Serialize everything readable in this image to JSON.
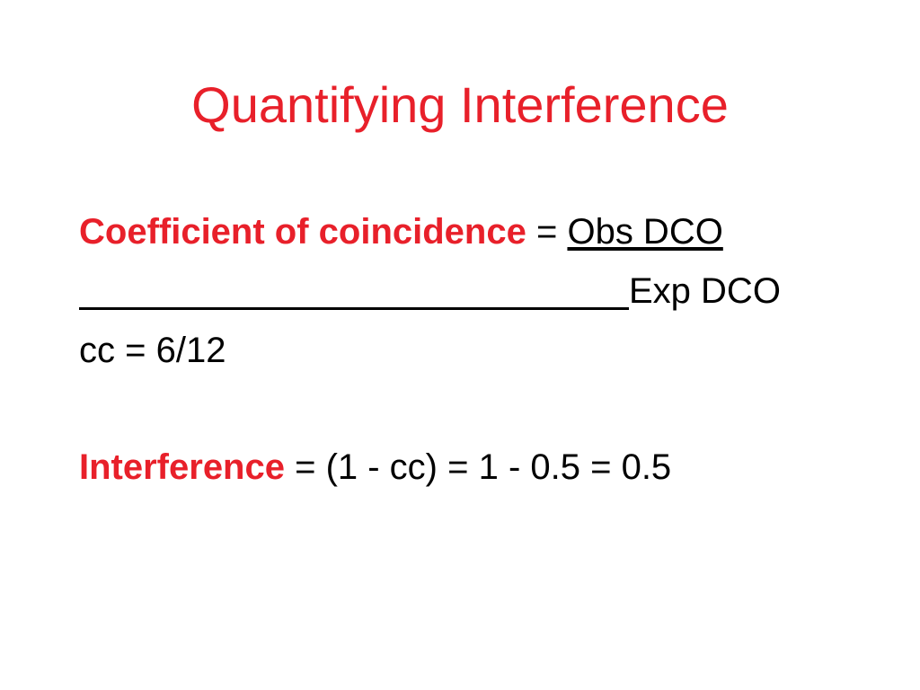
{
  "slide": {
    "title": "Quantifying Interference",
    "line1": {
      "term": "Coefficient of coincidence",
      "eq": " = ",
      "numerator": "Obs DCO"
    },
    "line2": {
      "denominator": "Exp DCO"
    },
    "line3": {
      "text": "cc = 6/12"
    },
    "line4": {
      "term": "Interference",
      "rest": " = (1 - cc) = 1 - 0.5 = 0.5"
    }
  }
}
